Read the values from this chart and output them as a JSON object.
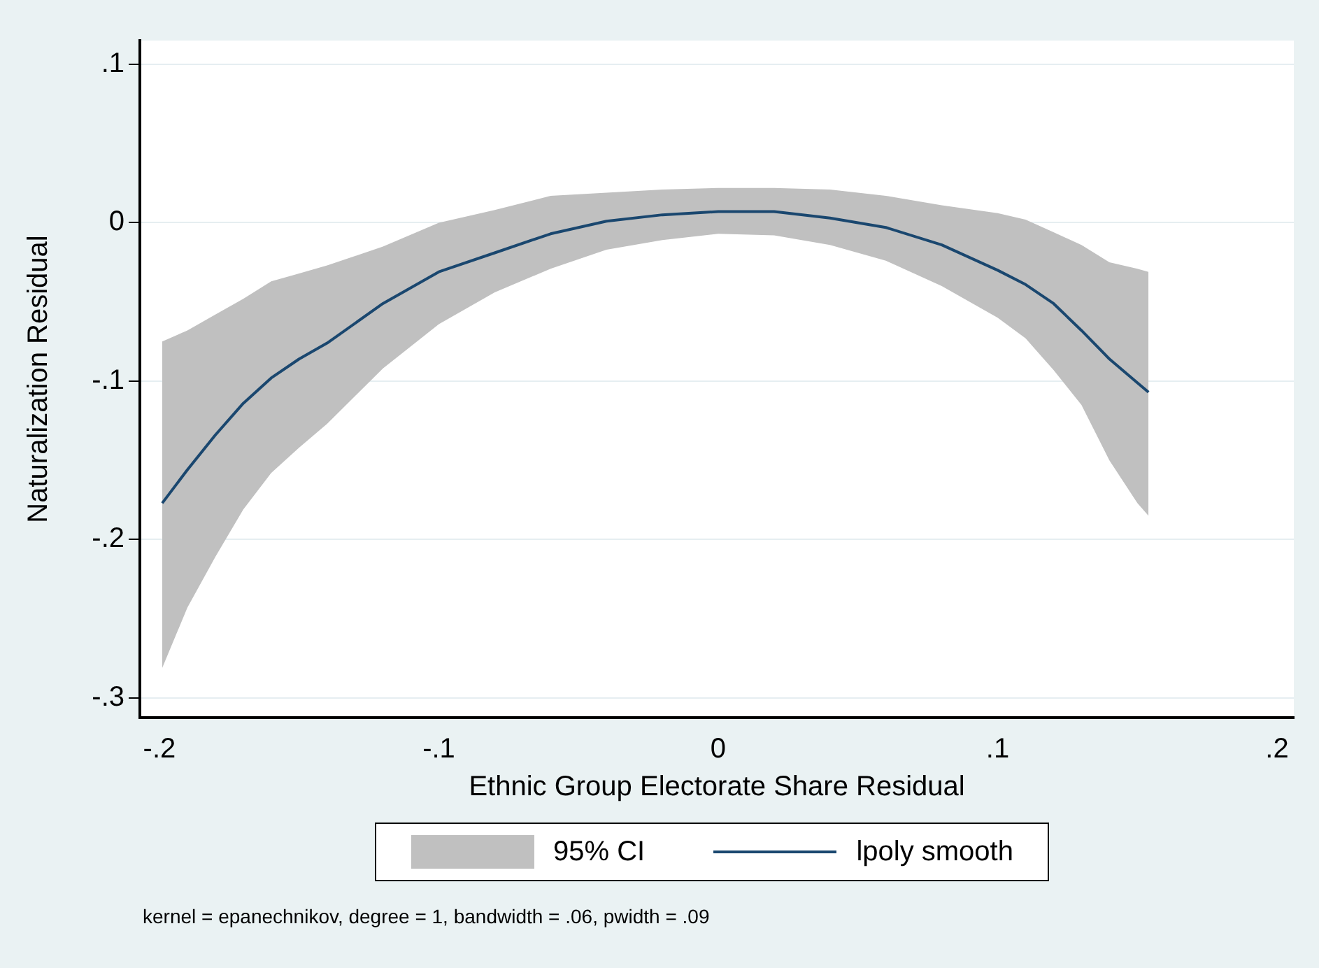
{
  "chart_data": {
    "type": "line",
    "xlabel": "Ethnic Group Electorate Share Residual",
    "ylabel": "Naturalization Residual",
    "annotations": [
      "95% CI",
      "kernel = epanechnikov, degree = 1, bandwidth = .06, pwidth = .09"
    ],
    "xlim": [
      -0.207,
      0.206
    ],
    "ylim": [
      -0.3124,
      0.115
    ],
    "xticks": [
      {
        "value": -0.2,
        "label": "-.2"
      },
      {
        "value": -0.1,
        "label": "-.1"
      },
      0,
      {
        "value": 0.1,
        "label": ".1"
      },
      {
        "value": 0.2,
        "label": ".2"
      }
    ],
    "yticks": [
      {
        "value": -0.3,
        "label": "-.3"
      },
      {
        "value": -0.2,
        "label": "-.2"
      },
      {
        "value": -0.1,
        "label": "-.1"
      },
      0,
      {
        "value": 0.1,
        "label": ".1"
      }
    ],
    "grid": "y",
    "legend": "bottom",
    "marker": "none",
    "line_style": "solid",
    "series": [
      {
        "name": "lpoly smooth",
        "color": "#1a476f",
        "x": [
          -0.199,
          -0.19,
          -0.18,
          -0.17,
          -0.16,
          -0.15,
          -0.14,
          -0.12,
          -0.1,
          -0.08,
          -0.06,
          -0.04,
          -0.02,
          0,
          0.02,
          0.04,
          0.06,
          0.08,
          0.1,
          0.11,
          0.12,
          0.13,
          0.14,
          0.15,
          0.154
        ],
        "values": [
          -0.177,
          -0.156,
          -0.134,
          -0.114,
          -0.098,
          -0.086,
          -0.076,
          -0.051,
          -0.031,
          -0.019,
          -0.007,
          0.001,
          0.005,
          0.007,
          0.007,
          0.003,
          -0.003,
          -0.014,
          -0.03,
          -0.039,
          -0.051,
          -0.068,
          -0.086,
          -0.101,
          -0.107
        ],
        "lower": [
          -0.281,
          -0.243,
          -0.211,
          -0.181,
          -0.158,
          -0.142,
          -0.127,
          -0.092,
          -0.064,
          -0.044,
          -0.029,
          -0.017,
          -0.011,
          -0.007,
          -0.008,
          -0.014,
          -0.024,
          -0.04,
          -0.06,
          -0.073,
          -0.093,
          -0.115,
          -0.15,
          -0.177,
          -0.185
        ],
        "upper": [
          -0.075,
          -0.068,
          -0.058,
          -0.048,
          -0.037,
          -0.032,
          -0.027,
          -0.015,
          0,
          0.008,
          0.017,
          0.019,
          0.021,
          0.022,
          0.022,
          0.021,
          0.017,
          0.011,
          0.006,
          0.002,
          -0.006,
          -0.014,
          -0.025,
          -0.029,
          -0.031
        ]
      }
    ]
  }
}
